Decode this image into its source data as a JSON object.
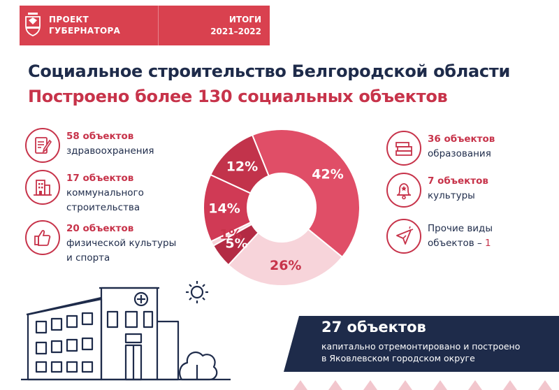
{
  "header": {
    "project": [
      "ПРОЕКТ",
      "ГУБЕРНАТОРА"
    ],
    "results_title": "ИТОГИ",
    "years": "2021–2022"
  },
  "title": "Социальное строительство Белгородской области",
  "subtitle": "Построено более 130 социальных объектов",
  "left_items": [
    {
      "count": "58 объектов",
      "lines": [
        "здравоохранения"
      ],
      "icon": "document-pen-icon"
    },
    {
      "count": "17 объектов",
      "lines": [
        "коммунального",
        "строительства"
      ],
      "icon": "building-icon"
    },
    {
      "count": "20 объектов",
      "lines": [
        "физической культуры",
        "и спорта"
      ],
      "icon": "thumbs-up-icon"
    }
  ],
  "right_items": [
    {
      "count": "36 объектов",
      "lines": [
        "образования"
      ],
      "icon": "books-icon"
    },
    {
      "count": "7 объектов",
      "lines": [
        "культуры"
      ],
      "icon": "bell-star-icon"
    },
    {
      "label_line1": "Прочие виды",
      "label_line2_prefix": "объектов – ",
      "label_value": "1",
      "icon": "cursor-icon"
    }
  ],
  "banner": {
    "big": "27 объектов",
    "line1": "капитально отремонтировано и построено",
    "line2": "в Яковлевском городском округе"
  },
  "colors": {
    "accent": "#c7334a",
    "navy": "#1e2b4a",
    "header": "#d9414f"
  },
  "chart_data": {
    "type": "pie",
    "donut": true,
    "slices": [
      {
        "label": "42%",
        "value": 42,
        "color": "#e04e67"
      },
      {
        "label": "26%",
        "value": 26,
        "color": "#f7d4da"
      },
      {
        "label": "5%",
        "value": 5,
        "color": "#b32b44"
      },
      {
        "label": "1%",
        "value": 1,
        "color": "#f7d4da"
      },
      {
        "label": "14%",
        "value": 14,
        "color": "#d03a55"
      },
      {
        "label": "12%",
        "value": 12,
        "color": "#c2334b"
      }
    ]
  }
}
